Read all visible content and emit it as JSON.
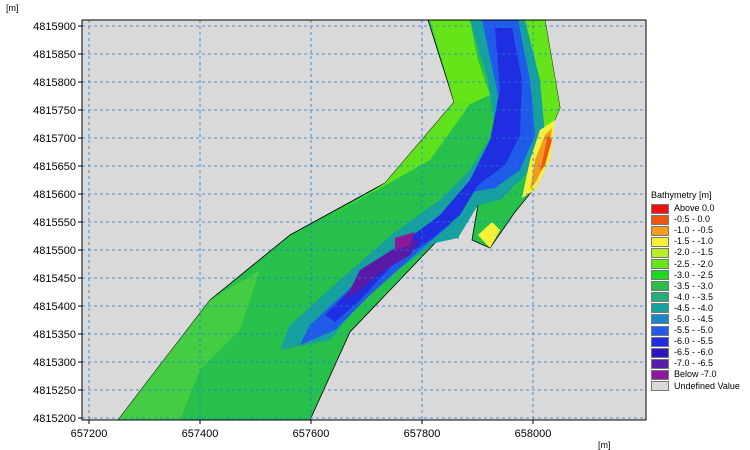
{
  "map": {
    "y_unit": "[m]",
    "x_unit": "[m]",
    "x_ticks": [
      "657200",
      "657400",
      "657600",
      "657800",
      "658000"
    ],
    "y_ticks": [
      "4815900",
      "4815850",
      "4815800",
      "4815750",
      "4815700",
      "4815650",
      "4815600",
      "4815550",
      "4815500",
      "4815450",
      "4815400",
      "4815350",
      "4815300",
      "4815250",
      "4815200"
    ],
    "x_range": [
      657168,
      658168
    ],
    "y_range": [
      4815198,
      4815912
    ],
    "background_color": "#d9d9d9",
    "grid_color": "#1e7fd8"
  },
  "legend": {
    "title": "Bathymetry [m]",
    "items": [
      {
        "label": "Above  0.0",
        "color": "#ee1111"
      },
      {
        "label": "-0.5 -  0.0",
        "color": "#ee5511"
      },
      {
        "label": "-1.0 - -0.5",
        "color": "#f59a1c"
      },
      {
        "label": "-1.5 - -1.0",
        "color": "#f5f03a"
      },
      {
        "label": "-2.0 - -1.5",
        "color": "#b6ee2a"
      },
      {
        "label": "-2.5 - -2.0",
        "color": "#66e41a"
      },
      {
        "label": "-3.0 - -2.5",
        "color": "#1ed81c"
      },
      {
        "label": "-3.5 - -3.0",
        "color": "#26c04a"
      },
      {
        "label": "-4.0 - -3.5",
        "color": "#22b07a"
      },
      {
        "label": "-4.5 - -4.0",
        "color": "#16a0a0"
      },
      {
        "label": "-5.0 - -4.5",
        "color": "#1a86c8"
      },
      {
        "label": "-5.5 - -5.0",
        "color": "#1f5ae8"
      },
      {
        "label": "-6.0 - -5.5",
        "color": "#1e2ee0"
      },
      {
        "label": "-6.5 - -6.0",
        "color": "#2a16c0"
      },
      {
        "label": "-7.0 - -6.5",
        "color": "#5a1aa8"
      },
      {
        "label": "Below -7.0",
        "color": "#8a1a9a"
      },
      {
        "label": "Undefined Value",
        "color": "#d9d9d9"
      }
    ]
  }
}
